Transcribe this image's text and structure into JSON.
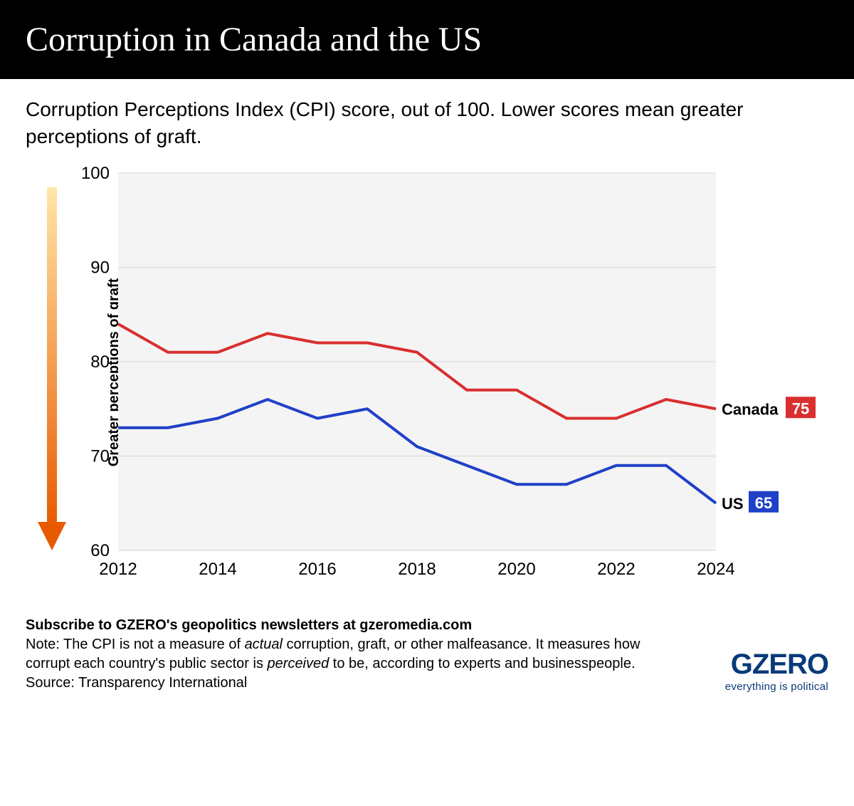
{
  "header": {
    "title": "Corruption in Canada and the US"
  },
  "subtitle": "Corruption Perceptions Index (CPI) score, out of 100. Lower scores mean greater perceptions of graft.",
  "arrow": {
    "label": "Greater perceptions of graft",
    "gradient_top": "#ffe6a8",
    "gradient_bottom": "#e85a00",
    "stroke_width": 14
  },
  "chart": {
    "type": "line",
    "background_color": "#f4f4f4",
    "grid_color": "#d6d6d6",
    "ylim": [
      60,
      100
    ],
    "ytick_step": 10,
    "yticks": [
      60,
      70,
      80,
      90,
      100
    ],
    "xticks": [
      2012,
      2014,
      2016,
      2018,
      2020,
      2022,
      2024
    ],
    "years": [
      2012,
      2013,
      2014,
      2015,
      2016,
      2017,
      2018,
      2019,
      2020,
      2021,
      2022,
      2023,
      2024
    ],
    "series": [
      {
        "name": "Canada",
        "color": "#d92f2f",
        "values": [
          84,
          81,
          81,
          83,
          82,
          82,
          81,
          77,
          77,
          74,
          74,
          76,
          75
        ],
        "end_label": "Canada",
        "end_value_label": "75",
        "line_width": 4
      },
      {
        "name": "US",
        "color": "#2040c8",
        "values": [
          73,
          73,
          74,
          76,
          74,
          75,
          71,
          69,
          67,
          67,
          69,
          69,
          65
        ],
        "end_label": "US",
        "end_value_label": "65",
        "line_width": 4
      }
    ],
    "axis_fontsize": 24,
    "label_fontsize": 22
  },
  "footer": {
    "subscribe": "Subscribe to GZERO's geopolitics newsletters at gzeromedia.com",
    "note_prefix": "Note: The CPI is not a measure of ",
    "note_italic1": "actual",
    "note_mid": " corruption, graft, or other malfeasance. It measures how corrupt each country's public sector is ",
    "note_italic2": "perceived",
    "note_suffix": " to be, according to experts and businesspeople.",
    "source": "Source: Transparency International",
    "logo_main": "GZERO",
    "logo_tag": "everything is political",
    "logo_color": "#0a3a7a"
  }
}
